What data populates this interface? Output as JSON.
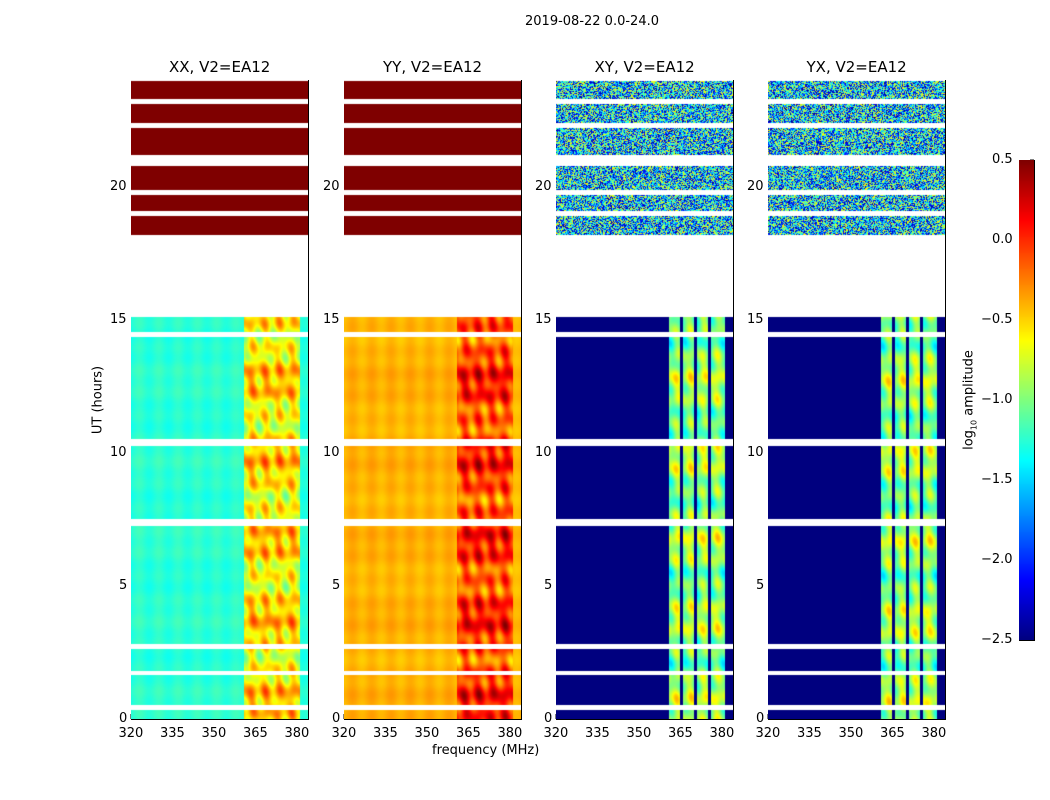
{
  "chart_data": {
    "type": "heatmap",
    "title": "2019-08-22 0.0-24.0",
    "xlabel": "frequency (MHz)",
    "ylabel": "UT (hours)",
    "xlim": [
      320,
      384
    ],
    "ylim": [
      0,
      24
    ],
    "xticks": [
      "320",
      "335",
      "350",
      "365",
      "380"
    ],
    "xtick_values": [
      320,
      335,
      350,
      365,
      380
    ],
    "yticks": [
      "0",
      "5",
      "10",
      "15",
      "20"
    ],
    "ytick_values": [
      0,
      5,
      10,
      15,
      20
    ],
    "colorbar": {
      "label_prefix": "log",
      "label_sub": "10",
      "label_suffix": " amplitude",
      "range": [
        -2.5,
        0.5
      ],
      "ticks": [
        "0.5",
        "0.0",
        "−0.5",
        "−1.0",
        "−1.5",
        "−2.0",
        "−2.5"
      ],
      "tick_values": [
        0.5,
        0.0,
        -0.5,
        -1.0,
        -1.5,
        -2.0,
        -2.5
      ],
      "colormap": "jet"
    },
    "data_time_ranges": [
      [
        0,
        15.1
      ],
      [
        18.2,
        20.8
      ],
      [
        21.2,
        24
      ]
    ],
    "flagged_times": [
      0.45,
      1.75,
      2.75,
      7.35,
      7.45,
      10.35,
      10.45,
      14.45,
      19.0,
      19.8,
      22.3,
      23.2
    ],
    "band_edges_mhz": [
      360.5,
      381
    ],
    "panels": [
      {
        "title": "XX, V2=EA12",
        "low_band_value": -1.25,
        "high_band_value": -0.55,
        "upper_block_value": 0.5,
        "upper_noise": 0,
        "flagged_channels": []
      },
      {
        "title": "YY, V2=EA12",
        "low_band_value": -0.4,
        "high_band_value": -0.05,
        "upper_block_value": 0.5,
        "upper_noise": 0,
        "flagged_channels": []
      },
      {
        "title": "XY, V2=EA12",
        "low_band_value": -2.5,
        "high_band_value": -0.95,
        "upper_block_value": -1.5,
        "upper_noise": 1.0,
        "flagged_channels": [
          365.2,
          370.2,
          375.3
        ]
      },
      {
        "title": "YX, V2=EA12",
        "low_band_value": -2.5,
        "high_band_value": -0.95,
        "upper_block_value": -1.5,
        "upper_noise": 1.0,
        "flagged_channels": [
          365.2,
          370.2,
          375.3
        ]
      }
    ]
  }
}
